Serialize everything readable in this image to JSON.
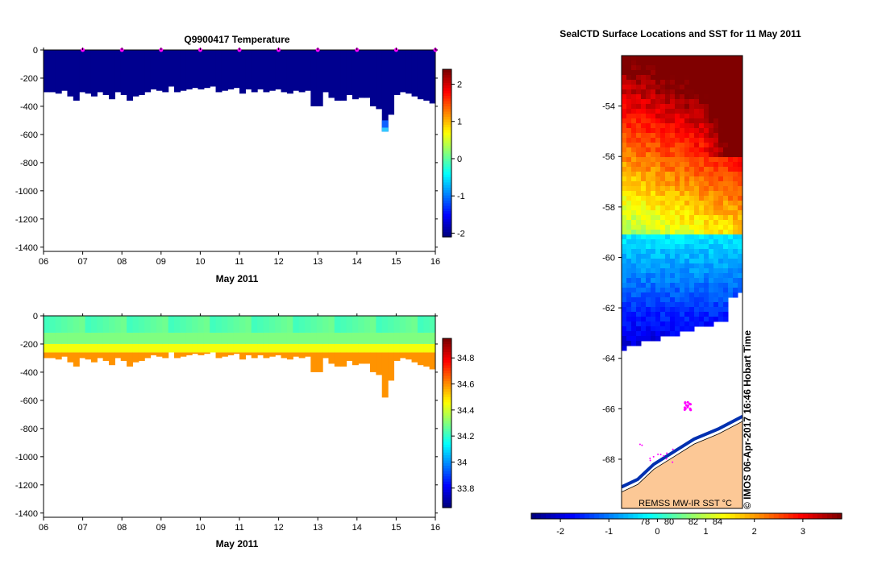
{
  "chart_data": [
    {
      "type": "heatmap",
      "title": "Q9900417  Temperature",
      "xlabel": "May 2011",
      "x_ticks": [
        "06",
        "07",
        "08",
        "09",
        "10",
        "11",
        "12",
        "13",
        "14",
        "15",
        "16"
      ],
      "y_ticks": [
        "0",
        "-200",
        "-400",
        "-600",
        "-800",
        "-1000",
        "-1200",
        "-1400"
      ],
      "xlim": [
        6,
        16
      ],
      "ylim": [
        -1430,
        0
      ],
      "colorbar": {
        "range": [
          -2.1,
          2.4
        ],
        "ticks": [
          "-2",
          "-1",
          "0",
          "1",
          "2"
        ]
      },
      "surface_markers_day": [
        7,
        8,
        9,
        10,
        11,
        12,
        13,
        14,
        15,
        16
      ],
      "profile_depths": [
        -300,
        -300,
        -310,
        -290,
        -330,
        -360,
        -300,
        -310,
        -330,
        -300,
        -320,
        -350,
        -300,
        -320,
        -360,
        -330,
        -320,
        -300,
        -280,
        -290,
        -300,
        -260,
        -300,
        -290,
        -280,
        -270,
        -280,
        -270,
        -260,
        -300,
        -290,
        -280,
        -270,
        -310,
        -280,
        -300,
        -280,
        -300,
        -290,
        -280,
        -300,
        -310,
        -290,
        -300,
        -290,
        -400,
        -400,
        -300,
        -340,
        -360,
        -360,
        -320,
        -350,
        -340,
        -340,
        -400,
        -420,
        -580,
        -460,
        -320,
        -300,
        -310,
        -330,
        -350,
        -360,
        -380
      ],
      "profile_temps": [
        -1.9,
        -1.9,
        -1.9,
        -1.9,
        -1.9,
        -1.9,
        -1.9,
        -1.9,
        -1.9,
        -1.9,
        -1.9,
        -1.9,
        -1.9,
        -1.9,
        -1.9,
        -1.9,
        -1.9,
        -1.9,
        -1.9,
        -1.9,
        -1.9,
        -1.9,
        -1.9,
        -1.9,
        -1.9,
        -1.9,
        -1.9,
        -1.9,
        -1.9,
        -1.9,
        -1.9,
        -1.9,
        -1.9,
        -1.9,
        -1.9,
        -1.9,
        -1.9,
        -1.9,
        -1.9,
        -1.9,
        -1.9,
        -1.9,
        -1.9,
        -1.9,
        -1.9,
        -1.9,
        -1.9,
        -1.9,
        -1.9,
        -1.9,
        -1.9,
        -1.9,
        -1.9,
        -1.9,
        -1.9,
        -1.9,
        -1.9,
        -1.9,
        -1.9,
        -1.9,
        -1.9,
        -1.9,
        -1.9,
        -1.9,
        -1.9,
        -1.9
      ]
    },
    {
      "type": "heatmap",
      "title": "",
      "xlabel": "May 2011",
      "x_ticks": [
        "06",
        "07",
        "08",
        "09",
        "10",
        "11",
        "12",
        "13",
        "14",
        "15",
        "16"
      ],
      "y_ticks": [
        "0",
        "-200",
        "-400",
        "-600",
        "-800",
        "-1000",
        "-1200",
        "-1400"
      ],
      "xlim": [
        6,
        16
      ],
      "ylim": [
        -1430,
        0
      ],
      "colorbar": {
        "range": [
          33.65,
          34.95
        ],
        "ticks": [
          "33.8",
          "34",
          "34.2",
          "34.4",
          "34.6",
          "34.8"
        ]
      },
      "profile_depths": [
        -300,
        -300,
        -310,
        -290,
        -330,
        -360,
        -300,
        -310,
        -330,
        -300,
        -320,
        -350,
        -300,
        -320,
        -360,
        -330,
        -320,
        -300,
        -280,
        -290,
        -300,
        -260,
        -300,
        -290,
        -280,
        -270,
        -280,
        -270,
        -260,
        -300,
        -290,
        -280,
        -270,
        -310,
        -280,
        -300,
        -280,
        -300,
        -290,
        -280,
        -300,
        -310,
        -290,
        -300,
        -290,
        -400,
        -400,
        -300,
        -340,
        -360,
        -360,
        -320,
        -350,
        -340,
        -340,
        -400,
        -420,
        -580,
        -460,
        -320,
        -300,
        -310,
        -330,
        -350,
        -360,
        -380
      ],
      "layers": [
        {
          "from": 0,
          "to": -120,
          "salinity": 34.25
        },
        {
          "from": -120,
          "to": -200,
          "salinity": 34.3
        },
        {
          "from": -200,
          "to": -260,
          "salinity": 34.45
        },
        {
          "from": -260,
          "to": -9999,
          "salinity": 34.6
        }
      ]
    },
    {
      "type": "heatmap",
      "title": "SealCTD Surface Locations and SST for 11 May 2011",
      "y_ticks": [
        "-54",
        "-56",
        "-58",
        "-60",
        "-62",
        "-64",
        "-66",
        "-68"
      ],
      "ylim": [
        -69.95,
        -52.0
      ],
      "colorbar": {
        "range": [
          -2.6,
          3.8
        ],
        "ticks": [
          "-2",
          "-1",
          "0",
          "1",
          "2",
          "3"
        ],
        "secondary_ticks": [
          "78",
          "80",
          "82",
          "84"
        ],
        "label": "REMSS MW-IR SST °C"
      },
      "annotation": "© IMOS 06-Apr-2017 16:46 Hobart Time"
    }
  ]
}
